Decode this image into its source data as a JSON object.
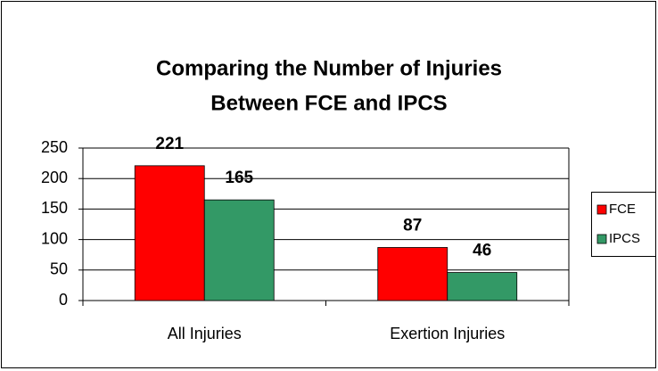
{
  "chart_data": {
    "type": "bar",
    "title": [
      "Comparing the Number of Injuries",
      "Between FCE and IPCS"
    ],
    "categories": [
      "All Injuries",
      "Exertion Injuries"
    ],
    "series": [
      {
        "name": "FCE",
        "color": "#ff0000",
        "values": [
          221,
          87
        ]
      },
      {
        "name": "IPCS",
        "color": "#339966",
        "values": [
          165,
          46
        ]
      }
    ],
    "ylim": [
      0,
      250
    ],
    "yticks": [
      0,
      50,
      100,
      150,
      200,
      250
    ],
    "grid": true,
    "legend": "right"
  }
}
